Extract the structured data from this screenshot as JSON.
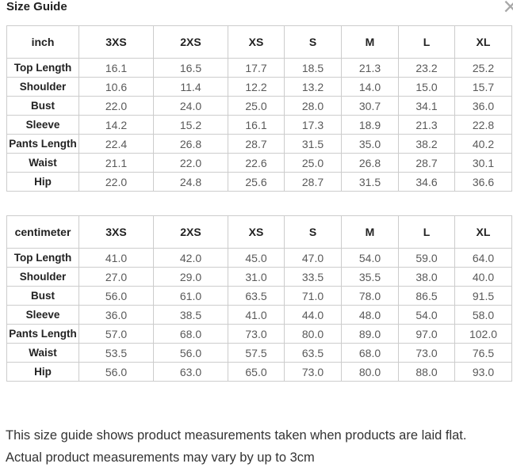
{
  "header": {
    "title": "Size Guide",
    "close_glyph": "×"
  },
  "sizes": [
    "3XS",
    "2XS",
    "XS",
    "S",
    "M",
    "L",
    "XL"
  ],
  "tables": [
    {
      "unit": "inch",
      "rows": [
        {
          "label": "Top Length",
          "values": [
            "16.1",
            "16.5",
            "17.7",
            "18.5",
            "21.3",
            "23.2",
            "25.2"
          ]
        },
        {
          "label": "Shoulder",
          "values": [
            "10.6",
            "11.4",
            "12.2",
            "13.2",
            "14.0",
            "15.0",
            "15.7"
          ]
        },
        {
          "label": "Bust",
          "values": [
            "22.0",
            "24.0",
            "25.0",
            "28.0",
            "30.7",
            "34.1",
            "36.0"
          ]
        },
        {
          "label": "Sleeve",
          "values": [
            "14.2",
            "15.2",
            "16.1",
            "17.3",
            "18.9",
            "21.3",
            "22.8"
          ]
        },
        {
          "label": "Pants Length",
          "values": [
            "22.4",
            "26.8",
            "28.7",
            "31.5",
            "35.0",
            "38.2",
            "40.2"
          ]
        },
        {
          "label": "Waist",
          "values": [
            "21.1",
            "22.0",
            "22.6",
            "25.0",
            "26.8",
            "28.7",
            "30.1"
          ]
        },
        {
          "label": "Hip",
          "values": [
            "22.0",
            "24.8",
            "25.6",
            "28.7",
            "31.5",
            "34.6",
            "36.6"
          ]
        }
      ]
    },
    {
      "unit": "centimeter",
      "rows": [
        {
          "label": "Top Length",
          "values": [
            "41.0",
            "42.0",
            "45.0",
            "47.0",
            "54.0",
            "59.0",
            "64.0"
          ]
        },
        {
          "label": "Shoulder",
          "values": [
            "27.0",
            "29.0",
            "31.0",
            "33.5",
            "35.5",
            "38.0",
            "40.0"
          ]
        },
        {
          "label": "Bust",
          "values": [
            "56.0",
            "61.0",
            "63.5",
            "71.0",
            "78.0",
            "86.5",
            "91.5"
          ]
        },
        {
          "label": "Sleeve",
          "values": [
            "36.0",
            "38.5",
            "41.0",
            "44.0",
            "48.0",
            "54.0",
            "58.0"
          ]
        },
        {
          "label": "Pants Length",
          "values": [
            "57.0",
            "68.0",
            "73.0",
            "80.0",
            "89.0",
            "97.0",
            "102.0"
          ]
        },
        {
          "label": "Waist",
          "values": [
            "53.5",
            "56.0",
            "57.5",
            "63.5",
            "68.0",
            "73.0",
            "76.5"
          ]
        },
        {
          "label": "Hip",
          "values": [
            "56.0",
            "63.0",
            "65.0",
            "73.0",
            "80.0",
            "88.0",
            "93.0"
          ]
        }
      ]
    }
  ],
  "footer": {
    "note": "This size guide shows product measurements taken when products are laid flat. Actual product measurements may vary by up to 3cm"
  },
  "colors": {
    "table_border": "#cccccc",
    "heading_text": "#222222",
    "value_text": "#595959",
    "close_icon": "#a8a8a8"
  }
}
